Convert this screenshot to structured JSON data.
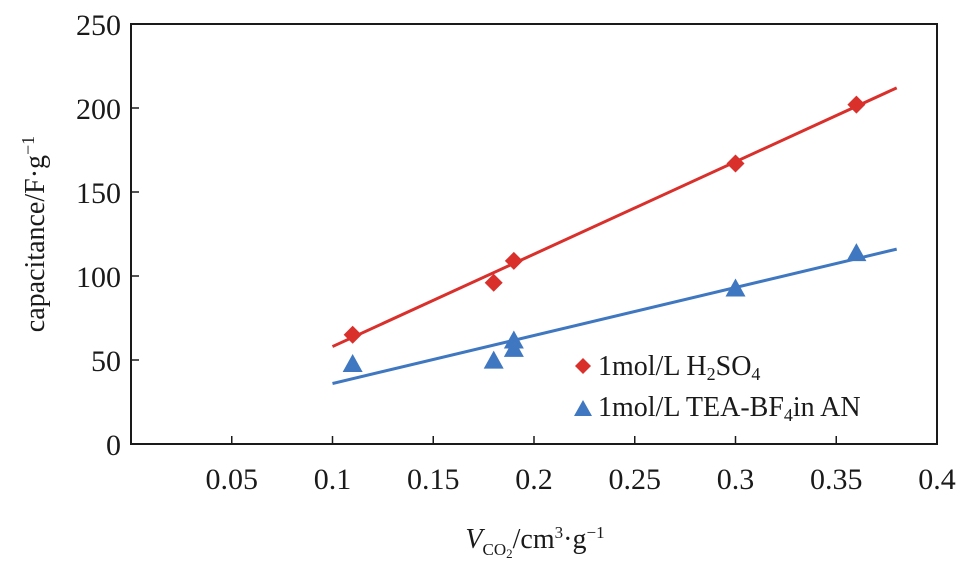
{
  "chart_data": {
    "type": "scatter",
    "xlabel": {
      "prefix": "V",
      "sub": "CO",
      "sub2": "2",
      "rest": "/cm",
      "sup1": "3",
      "mid": "·g",
      "sup2": "−1"
    },
    "ylabel": {
      "main": "capacitance/F·g",
      "sup": "−1"
    },
    "xlim": [
      0,
      0.4
    ],
    "ylim": [
      0,
      250
    ],
    "xticks": [
      "0.05",
      "0.1",
      "0.15",
      "0.2",
      "0.25",
      "0.3",
      "0.35",
      "0.4"
    ],
    "xtick_values": [
      0.05,
      0.1,
      0.15,
      0.2,
      0.25,
      0.3,
      0.35,
      0.4
    ],
    "yticks": [
      "0",
      "50",
      "100",
      "150",
      "200",
      "250"
    ],
    "ytick_values": [
      0,
      50,
      100,
      150,
      200,
      250
    ],
    "grid": false,
    "legend_position": "lower-right",
    "series": [
      {
        "name": "1mol/L H2SO4",
        "legend": {
          "a": "1mol/L H",
          "sub1": "2",
          "b": "SO",
          "sub2": "4"
        },
        "color": "#d9302c",
        "marker": "diamond",
        "points": [
          [
            0.11,
            65
          ],
          [
            0.18,
            96
          ],
          [
            0.19,
            109
          ],
          [
            0.3,
            167
          ],
          [
            0.36,
            202
          ]
        ],
        "fit": [
          [
            0.1,
            58
          ],
          [
            0.38,
            212
          ]
        ]
      },
      {
        "name": "1mol/L TEA-BF4in AN",
        "legend": {
          "a": "1mol/L TEA-BF",
          "sub1": "4",
          "b": "in AN",
          "sub2": ""
        },
        "color": "#3f78c0",
        "marker": "triangle",
        "points": [
          [
            0.11,
            47
          ],
          [
            0.18,
            49
          ],
          [
            0.19,
            56
          ],
          [
            0.19,
            61
          ],
          [
            0.3,
            92
          ],
          [
            0.36,
            113
          ]
        ],
        "fit": [
          [
            0.1,
            36
          ],
          [
            0.38,
            116
          ]
        ]
      }
    ]
  }
}
